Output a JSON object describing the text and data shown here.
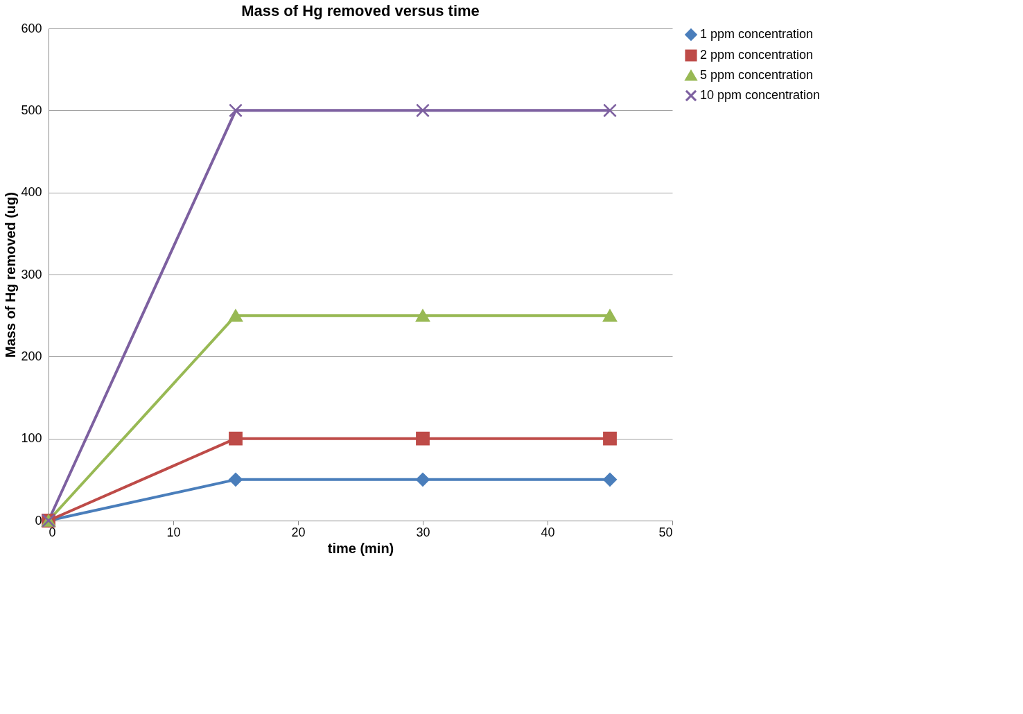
{
  "chart_data": {
    "type": "line",
    "title": "Mass of Hg removed versus time",
    "xlabel": "time (min)",
    "ylabel": "Mass of Hg removed (ug)",
    "x": [
      0,
      15,
      30,
      45
    ],
    "series": [
      {
        "name": "1 ppm concentration",
        "color": "#4a7ebb",
        "marker": "diamond",
        "values": [
          0,
          50,
          50,
          50
        ]
      },
      {
        "name": "2 ppm concentration",
        "color": "#be4b48",
        "marker": "square",
        "values": [
          0,
          100,
          100,
          100
        ]
      },
      {
        "name": "5 ppm concentration",
        "color": "#98b954",
        "marker": "triangle",
        "values": [
          0,
          250,
          250,
          250
        ]
      },
      {
        "name": "10 ppm concentration",
        "color": "#7d60a0",
        "marker": "cross",
        "values": [
          0,
          500,
          500,
          500
        ]
      }
    ],
    "xlim": [
      0,
      50
    ],
    "xticks": [
      0,
      10,
      20,
      30,
      40,
      50
    ],
    "ylim": [
      0,
      600
    ],
    "yticks": [
      0,
      100,
      200,
      300,
      400,
      500,
      600
    ],
    "grid": "y",
    "legend": "right",
    "line_style": "solid"
  }
}
